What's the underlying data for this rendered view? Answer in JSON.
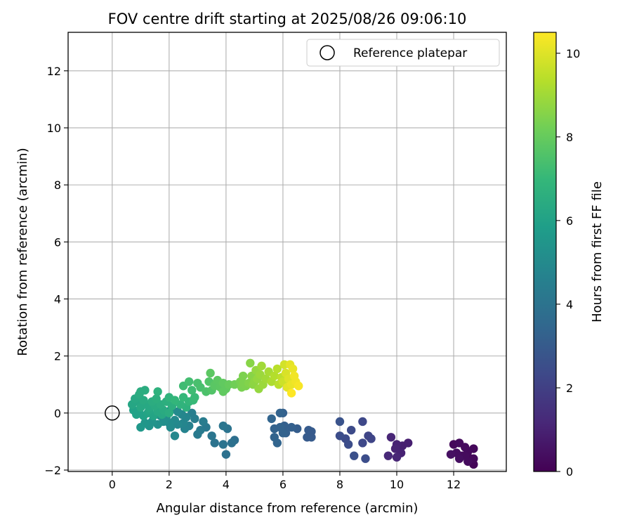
{
  "chart_data": {
    "type": "scatter",
    "title": "FOV centre drift starting at 2025/08/26 09:06:10",
    "xlabel": "Angular distance from reference (arcmin)",
    "ylabel": "Rotation from reference (arcmin)",
    "xlim": [
      -1.55,
      13.85
    ],
    "ylim": [
      -2.05,
      13.35
    ],
    "xticks": [
      0,
      2,
      4,
      6,
      8,
      10,
      12
    ],
    "yticks": [
      -2,
      0,
      2,
      4,
      6,
      8,
      10,
      12
    ],
    "grid": true,
    "legend": {
      "location": "top-right",
      "label": "Reference platepar"
    },
    "reference_point": {
      "x": 0,
      "y": 0
    },
    "colorbar": {
      "label": "Hours from first FF file",
      "range": [
        0,
        10.5
      ],
      "ticks": [
        0,
        2,
        4,
        6,
        8,
        10
      ],
      "colormap": "viridis"
    },
    "colors": {
      "viridis": [
        "#440154",
        "#482878",
        "#3e4989",
        "#31688e",
        "#26828e",
        "#1f9e89",
        "#35b779",
        "#6ece58",
        "#b5de2b",
        "#fde725"
      ],
      "grid": "#b0b0b0",
      "axis": "#000000"
    },
    "points": [
      {
        "x": 12.0,
        "y": -1.1,
        "h": 0.2
      },
      {
        "x": 12.2,
        "y": -1.05,
        "h": 0.3
      },
      {
        "x": 12.4,
        "y": -1.2,
        "h": 0.3
      },
      {
        "x": 12.7,
        "y": -1.25,
        "h": 0.2
      },
      {
        "x": 12.1,
        "y": -1.4,
        "h": 0.35
      },
      {
        "x": 12.3,
        "y": -1.5,
        "h": 0.3
      },
      {
        "x": 12.5,
        "y": -1.35,
        "h": 0.25
      },
      {
        "x": 12.6,
        "y": -1.6,
        "h": 0.2
      },
      {
        "x": 12.2,
        "y": -1.6,
        "h": 0.4
      },
      {
        "x": 12.5,
        "y": -1.7,
        "h": 0.3
      },
      {
        "x": 12.7,
        "y": -1.8,
        "h": 0.1
      },
      {
        "x": 11.9,
        "y": -1.45,
        "h": 0.45
      },
      {
        "x": 12.4,
        "y": -1.5,
        "h": 0.3
      },
      {
        "x": 12.7,
        "y": -1.6,
        "h": 0.2
      },
      {
        "x": 10.0,
        "y": -1.1,
        "h": 1.0
      },
      {
        "x": 10.2,
        "y": -1.15,
        "h": 0.9
      },
      {
        "x": 10.4,
        "y": -1.05,
        "h": 0.9
      },
      {
        "x": 9.8,
        "y": -0.85,
        "h": 1.1
      },
      {
        "x": 9.7,
        "y": -1.5,
        "h": 1.2
      },
      {
        "x": 10.0,
        "y": -1.55,
        "h": 1.1
      },
      {
        "x": 10.15,
        "y": -1.4,
        "h": 1.0
      },
      {
        "x": 9.95,
        "y": -1.25,
        "h": 1.05
      },
      {
        "x": 8.8,
        "y": -0.3,
        "h": 2.3
      },
      {
        "x": 8.4,
        "y": -0.6,
        "h": 2.4
      },
      {
        "x": 9.0,
        "y": -0.8,
        "h": 2.2
      },
      {
        "x": 8.0,
        "y": -0.8,
        "h": 2.5
      },
      {
        "x": 8.2,
        "y": -0.9,
        "h": 2.4
      },
      {
        "x": 8.3,
        "y": -1.1,
        "h": 2.5
      },
      {
        "x": 8.8,
        "y": -1.05,
        "h": 2.3
      },
      {
        "x": 9.1,
        "y": -0.9,
        "h": 2.2
      },
      {
        "x": 8.5,
        "y": -1.5,
        "h": 2.6
      },
      {
        "x": 8.9,
        "y": -1.6,
        "h": 2.5
      },
      {
        "x": 8.0,
        "y": -0.3,
        "h": 2.7
      },
      {
        "x": 5.9,
        "y": 0.0,
        "h": 3.3
      },
      {
        "x": 6.0,
        "y": 0.0,
        "h": 3.2
      },
      {
        "x": 5.6,
        "y": -0.2,
        "h": 3.4
      },
      {
        "x": 5.7,
        "y": -0.55,
        "h": 3.3
      },
      {
        "x": 5.9,
        "y": -0.5,
        "h": 3.3
      },
      {
        "x": 6.05,
        "y": -0.45,
        "h": 3.2
      },
      {
        "x": 6.3,
        "y": -0.5,
        "h": 3.2
      },
      {
        "x": 6.5,
        "y": -0.55,
        "h": 3.1
      },
      {
        "x": 6.9,
        "y": -0.6,
        "h": 3.0
      },
      {
        "x": 7.0,
        "y": -0.65,
        "h": 3.0
      },
      {
        "x": 5.7,
        "y": -0.85,
        "h": 3.35
      },
      {
        "x": 5.8,
        "y": -1.05,
        "h": 3.4
      },
      {
        "x": 6.0,
        "y": -0.7,
        "h": 3.3
      },
      {
        "x": 6.85,
        "y": -0.85,
        "h": 3.0
      },
      {
        "x": 7.0,
        "y": -0.85,
        "h": 3.0
      },
      {
        "x": 6.1,
        "y": -0.7,
        "h": 3.25
      },
      {
        "x": 2.8,
        "y": 0.0,
        "h": 4.5
      },
      {
        "x": 2.9,
        "y": -0.2,
        "h": 4.5
      },
      {
        "x": 3.2,
        "y": -0.3,
        "h": 4.4
      },
      {
        "x": 3.1,
        "y": -0.6,
        "h": 4.3
      },
      {
        "x": 3.3,
        "y": -0.5,
        "h": 4.2
      },
      {
        "x": 3.0,
        "y": -0.75,
        "h": 4.3
      },
      {
        "x": 3.5,
        "y": -0.8,
        "h": 4.1
      },
      {
        "x": 3.6,
        "y": -1.05,
        "h": 4.0
      },
      {
        "x": 3.9,
        "y": -1.1,
        "h": 4.0
      },
      {
        "x": 4.0,
        "y": -1.45,
        "h": 3.9
      },
      {
        "x": 4.2,
        "y": -1.05,
        "h": 3.9
      },
      {
        "x": 4.3,
        "y": -0.95,
        "h": 3.8
      },
      {
        "x": 3.9,
        "y": -0.45,
        "h": 4.1
      },
      {
        "x": 4.05,
        "y": -0.55,
        "h": 4.0
      },
      {
        "x": 2.55,
        "y": -0.55,
        "h": 4.7
      },
      {
        "x": 2.7,
        "y": -0.45,
        "h": 4.6
      },
      {
        "x": 2.5,
        "y": -0.35,
        "h": 4.8
      },
      {
        "x": 2.3,
        "y": -0.4,
        "h": 4.9
      },
      {
        "x": 2.2,
        "y": -0.25,
        "h": 5.0
      },
      {
        "x": 2.0,
        "y": -0.35,
        "h": 5.1
      },
      {
        "x": 1.8,
        "y": -0.3,
        "h": 5.2
      },
      {
        "x": 1.6,
        "y": -0.4,
        "h": 5.3
      },
      {
        "x": 1.4,
        "y": -0.3,
        "h": 5.4
      },
      {
        "x": 1.3,
        "y": -0.45,
        "h": 5.4
      },
      {
        "x": 1.15,
        "y": -0.35,
        "h": 5.5
      },
      {
        "x": 1.0,
        "y": -0.5,
        "h": 5.6
      },
      {
        "x": 2.2,
        "y": -0.8,
        "h": 4.9
      },
      {
        "x": 2.05,
        "y": -0.5,
        "h": 5.05
      },
      {
        "x": 2.6,
        "y": -0.15,
        "h": 4.8
      },
      {
        "x": 2.45,
        "y": -0.05,
        "h": 4.85
      },
      {
        "x": 1.7,
        "y": -0.1,
        "h": 5.25
      },
      {
        "x": 1.9,
        "y": -0.15,
        "h": 5.15
      },
      {
        "x": 2.3,
        "y": 0.05,
        "h": 5.0
      },
      {
        "x": 2.05,
        "y": 0.1,
        "h": 5.1
      },
      {
        "x": 0.7,
        "y": 0.3,
        "h": 6.2
      },
      {
        "x": 0.8,
        "y": 0.5,
        "h": 6.3
      },
      {
        "x": 0.9,
        "y": 0.4,
        "h": 6.2
      },
      {
        "x": 0.75,
        "y": 0.1,
        "h": 6.0
      },
      {
        "x": 0.85,
        "y": -0.05,
        "h": 6.0
      },
      {
        "x": 1.0,
        "y": 0.2,
        "h": 6.3
      },
      {
        "x": 1.1,
        "y": 0.45,
        "h": 6.4
      },
      {
        "x": 1.0,
        "y": 0.75,
        "h": 6.5
      },
      {
        "x": 1.15,
        "y": 0.8,
        "h": 6.5
      },
      {
        "x": 0.95,
        "y": 0.65,
        "h": 6.45
      },
      {
        "x": 1.2,
        "y": 0.3,
        "h": 6.3
      },
      {
        "x": 1.3,
        "y": 0.1,
        "h": 6.2
      },
      {
        "x": 1.4,
        "y": 0.4,
        "h": 6.5
      },
      {
        "x": 1.55,
        "y": 0.5,
        "h": 6.6
      },
      {
        "x": 1.6,
        "y": 0.75,
        "h": 6.7
      },
      {
        "x": 1.7,
        "y": 0.3,
        "h": 6.5
      },
      {
        "x": 1.8,
        "y": 0.1,
        "h": 6.4
      },
      {
        "x": 1.9,
        "y": 0.4,
        "h": 6.6
      },
      {
        "x": 2.0,
        "y": 0.55,
        "h": 6.8
      },
      {
        "x": 2.1,
        "y": 0.25,
        "h": 6.6
      },
      {
        "x": 2.2,
        "y": 0.45,
        "h": 6.9
      },
      {
        "x": 2.4,
        "y": 0.3,
        "h": 6.8
      },
      {
        "x": 2.5,
        "y": 0.55,
        "h": 7.0
      },
      {
        "x": 2.6,
        "y": 0.2,
        "h": 6.7
      },
      {
        "x": 2.7,
        "y": 0.4,
        "h": 6.9
      },
      {
        "x": 1.1,
        "y": -0.1,
        "h": 6.0
      },
      {
        "x": 1.25,
        "y": 0.0,
        "h": 6.1
      },
      {
        "x": 0.95,
        "y": 0.0,
        "h": 5.95
      },
      {
        "x": 1.45,
        "y": -0.1,
        "h": 6.1
      },
      {
        "x": 1.6,
        "y": 0.05,
        "h": 6.3
      },
      {
        "x": 1.75,
        "y": -0.05,
        "h": 6.3
      },
      {
        "x": 2.0,
        "y": 0.0,
        "h": 6.5
      },
      {
        "x": 1.3,
        "y": 0.2,
        "h": 6.3
      },
      {
        "x": 1.5,
        "y": 0.25,
        "h": 6.4
      },
      {
        "x": 2.5,
        "y": 0.95,
        "h": 7.2
      },
      {
        "x": 2.7,
        "y": 1.1,
        "h": 7.3
      },
      {
        "x": 2.8,
        "y": 0.8,
        "h": 7.2
      },
      {
        "x": 3.0,
        "y": 1.05,
        "h": 7.4
      },
      {
        "x": 3.1,
        "y": 0.9,
        "h": 7.4
      },
      {
        "x": 3.3,
        "y": 0.75,
        "h": 7.5
      },
      {
        "x": 3.5,
        "y": 0.8,
        "h": 7.6
      },
      {
        "x": 3.4,
        "y": 1.1,
        "h": 7.6
      },
      {
        "x": 3.45,
        "y": 1.4,
        "h": 7.8
      },
      {
        "x": 3.6,
        "y": 1.0,
        "h": 7.7
      },
      {
        "x": 3.7,
        "y": 1.15,
        "h": 7.8
      },
      {
        "x": 3.8,
        "y": 0.9,
        "h": 7.8
      },
      {
        "x": 3.9,
        "y": 1.05,
        "h": 7.9
      },
      {
        "x": 4.0,
        "y": 0.85,
        "h": 7.9
      },
      {
        "x": 4.1,
        "y": 1.0,
        "h": 8.0
      },
      {
        "x": 3.9,
        "y": 0.75,
        "h": 7.9
      },
      {
        "x": 2.9,
        "y": 0.55,
        "h": 7.1
      },
      {
        "x": 2.85,
        "y": 0.45,
        "h": 7.05
      },
      {
        "x": 3.6,
        "y": 0.95,
        "h": 7.75
      },
      {
        "x": 4.3,
        "y": 1.0,
        "h": 8.2
      },
      {
        "x": 4.5,
        "y": 1.1,
        "h": 8.3
      },
      {
        "x": 4.6,
        "y": 1.3,
        "h": 8.4
      },
      {
        "x": 4.7,
        "y": 0.95,
        "h": 8.4
      },
      {
        "x": 4.8,
        "y": 1.05,
        "h": 8.5
      },
      {
        "x": 4.85,
        "y": 1.75,
        "h": 8.6
      },
      {
        "x": 4.9,
        "y": 1.3,
        "h": 8.6
      },
      {
        "x": 5.0,
        "y": 1.1,
        "h": 8.7
      },
      {
        "x": 5.05,
        "y": 1.5,
        "h": 8.8
      },
      {
        "x": 5.1,
        "y": 1.2,
        "h": 8.8
      },
      {
        "x": 5.2,
        "y": 1.35,
        "h": 8.9
      },
      {
        "x": 5.25,
        "y": 1.65,
        "h": 9.0
      },
      {
        "x": 5.3,
        "y": 1.0,
        "h": 8.9
      },
      {
        "x": 5.4,
        "y": 1.2,
        "h": 9.0
      },
      {
        "x": 5.5,
        "y": 1.45,
        "h": 9.1
      },
      {
        "x": 5.6,
        "y": 1.1,
        "h": 9.2
      },
      {
        "x": 5.7,
        "y": 1.3,
        "h": 9.3
      },
      {
        "x": 5.8,
        "y": 1.55,
        "h": 9.4
      },
      {
        "x": 5.85,
        "y": 1.0,
        "h": 9.4
      },
      {
        "x": 5.95,
        "y": 1.25,
        "h": 9.5
      },
      {
        "x": 4.6,
        "y": 1.05,
        "h": 8.4
      },
      {
        "x": 5.15,
        "y": 0.85,
        "h": 8.8
      },
      {
        "x": 4.95,
        "y": 1.0,
        "h": 8.65
      },
      {
        "x": 4.55,
        "y": 0.9,
        "h": 8.35
      },
      {
        "x": 6.0,
        "y": 1.1,
        "h": 9.7
      },
      {
        "x": 6.05,
        "y": 1.7,
        "h": 9.8
      },
      {
        "x": 6.1,
        "y": 1.4,
        "h": 9.9
      },
      {
        "x": 6.2,
        "y": 1.2,
        "h": 10.0
      },
      {
        "x": 6.25,
        "y": 1.7,
        "h": 10.1
      },
      {
        "x": 6.3,
        "y": 1.0,
        "h": 10.2
      },
      {
        "x": 6.4,
        "y": 1.3,
        "h": 10.3
      },
      {
        "x": 6.45,
        "y": 1.1,
        "h": 10.3
      },
      {
        "x": 6.55,
        "y": 0.95,
        "h": 10.4
      },
      {
        "x": 6.3,
        "y": 0.7,
        "h": 10.5
      },
      {
        "x": 6.15,
        "y": 0.9,
        "h": 10.1
      },
      {
        "x": 6.35,
        "y": 1.55,
        "h": 10.2
      }
    ]
  }
}
